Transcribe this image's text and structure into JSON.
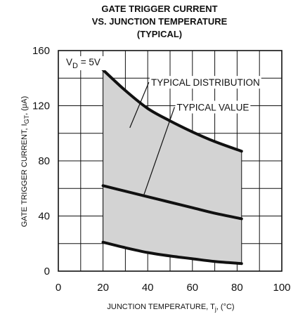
{
  "chart_data": {
    "type": "area",
    "title_lines": [
      "GATE TRIGGER CURRENT",
      "VS. JUNCTION TEMPERATURE",
      "(TYPICAL)"
    ],
    "xlabel": {
      "main": "JUNCTION TEMPERATURE, T",
      "sub": "j",
      "unit": ", (°C)"
    },
    "ylabel": {
      "main": "GATE TRIGGER CURRENT, I",
      "sub": "GT",
      "unit": ", (μA)"
    },
    "xlim": [
      0,
      100
    ],
    "ylim": [
      0,
      160
    ],
    "x_ticks": [
      0,
      20,
      40,
      60,
      80,
      100
    ],
    "y_ticks": [
      0,
      40,
      80,
      120,
      160
    ],
    "x_ticklabels": [
      "0",
      "20",
      "40",
      "60",
      "80",
      "100"
    ],
    "y_ticklabels": [
      "0",
      "40",
      "80",
      "120",
      "160"
    ],
    "grid": {
      "x_minor_step": 10,
      "y_minor_step": 20
    },
    "condition": {
      "main": "V",
      "sub": "D",
      "rest": " = 5V"
    },
    "band_color": "#d3d3d3",
    "line_color": "#111111",
    "series": [
      {
        "role": "upper",
        "x": [
          20,
          30,
          40,
          50,
          60,
          70,
          82
        ],
        "y": [
          146,
          131,
          118,
          109,
          101,
          94,
          87
        ]
      },
      {
        "role": "typical",
        "label": "TYPICAL VALUE",
        "x": [
          20,
          30,
          40,
          50,
          60,
          70,
          82
        ],
        "y": [
          62,
          58,
          54,
          50,
          46,
          42,
          38
        ]
      },
      {
        "role": "lower",
        "x": [
          20,
          30,
          40,
          50,
          60,
          70,
          82
        ],
        "y": [
          21,
          17,
          13.5,
          11,
          9,
          7,
          5.5
        ]
      }
    ],
    "annotations": [
      {
        "text": "TYPICAL DISTRIBUTION",
        "text_pos": [
          41.5,
          137
        ],
        "pointer_from": [
          40.5,
          137
        ],
        "pointer_to": [
          32,
          104
        ]
      },
      {
        "text": "TYPICAL VALUE",
        "text_pos": [
          53,
          119
        ],
        "pointer_from": [
          52,
          119
        ],
        "pointer_to": [
          38,
          54
        ]
      }
    ]
  }
}
